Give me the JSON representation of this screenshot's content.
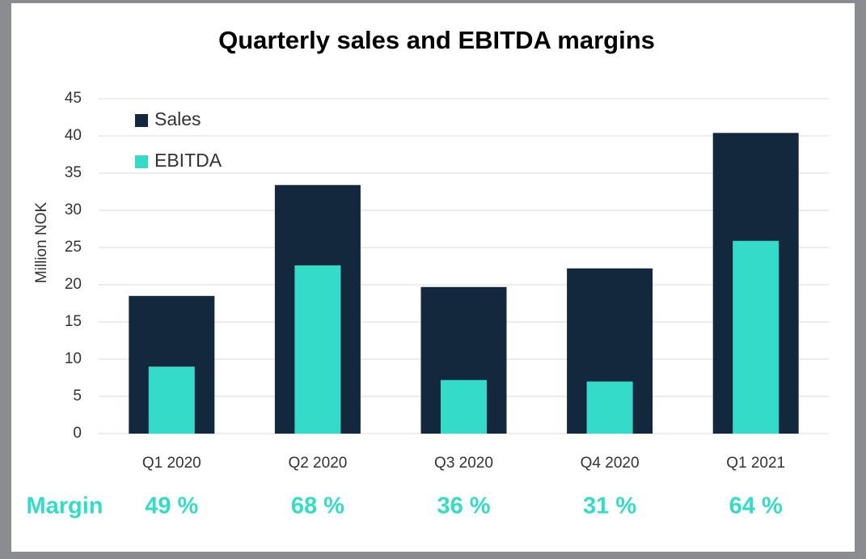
{
  "chart_data": {
    "type": "bar",
    "title": "Quarterly sales and EBITDA margins",
    "y_label": "Million NOK",
    "categories": [
      "Q1 2020",
      "Q2 2020",
      "Q3 2020",
      "Q4 2020",
      "Q1 2021"
    ],
    "series": [
      {
        "name": "Sales",
        "color": "#13283d",
        "values": [
          18.5,
          33.4,
          19.7,
          22.2,
          40.4
        ]
      },
      {
        "name": "EBITDA",
        "color": "#33dbc8",
        "values": [
          9.0,
          22.6,
          7.2,
          7.0,
          25.9
        ]
      }
    ],
    "ylim": [
      0,
      45
    ],
    "yticks": [
      0,
      5,
      10,
      15,
      20,
      25,
      30,
      35,
      40,
      45
    ],
    "grid": true,
    "legend": "top-left",
    "margin": {
      "label": "Margin",
      "color": "#33dbc8",
      "values": [
        49,
        68,
        36,
        31,
        64
      ],
      "value_labels": [
        "49 %",
        "68 %",
        "36 %",
        "31 %",
        "64 %"
      ]
    }
  }
}
